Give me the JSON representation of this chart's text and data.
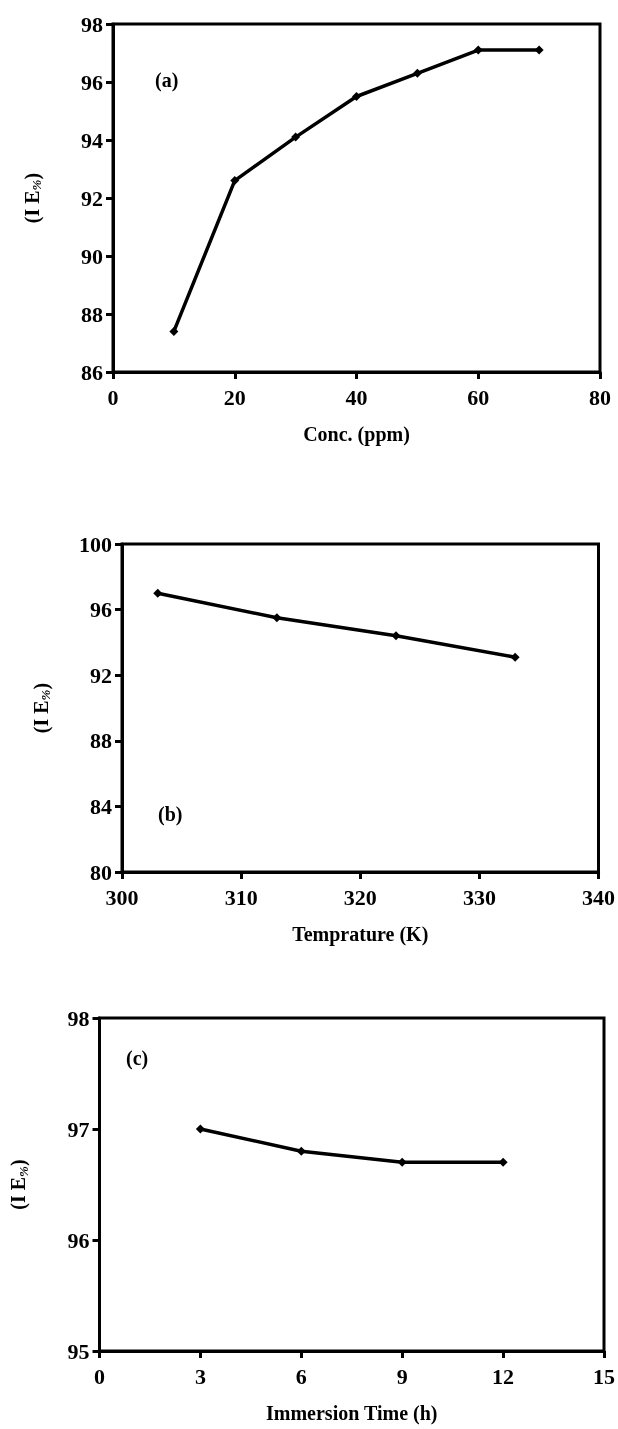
{
  "chart_data": [
    {
      "type": "line",
      "xlabel": "Conc. (ppm)",
      "ylabel": "(I E$_{%}$)",
      "annotations": [
        "(a)"
      ],
      "x": [
        10,
        20,
        30,
        40,
        50,
        60,
        70
      ],
      "series": [
        {
          "color": "#000000",
          "values": [
            87.4,
            92.6,
            94.1,
            95.5,
            96.3,
            97.1,
            97.1
          ]
        }
      ],
      "xlim": [
        0,
        80
      ],
      "xticks": [
        0,
        20,
        40,
        60,
        80
      ],
      "ylim": [
        86,
        98
      ],
      "yticks": [
        86,
        88,
        90,
        92,
        94,
        96,
        98
      ],
      "grid": false,
      "marker": "diamond",
      "line_style": "solid"
    },
    {
      "type": "line",
      "xlabel": "Temprature (K)",
      "ylabel": "(I E$_{%}$)",
      "annotations": [
        "(b)"
      ],
      "x": [
        303,
        313,
        323,
        333
      ],
      "series": [
        {
          "color": "#000000",
          "values": [
            97.0,
            95.5,
            94.4,
            93.1
          ]
        }
      ],
      "xlim": [
        300,
        340
      ],
      "xticks": [
        300,
        310,
        320,
        330,
        340
      ],
      "ylim": [
        80,
        100
      ],
      "yticks": [
        80,
        84,
        88,
        92,
        96,
        100
      ],
      "grid": false,
      "marker": "diamond",
      "line_style": "solid"
    },
    {
      "type": "line",
      "xlabel": "Immersion Time (h)",
      "ylabel": "(I E$_{%}$)",
      "annotations": [
        "(c)"
      ],
      "x": [
        3,
        6,
        9,
        12
      ],
      "series": [
        {
          "color": "#000000",
          "values": [
            97.0,
            96.8,
            96.7,
            96.7
          ]
        }
      ],
      "xlim": [
        0,
        15
      ],
      "xticks": [
        0,
        3,
        6,
        9,
        12,
        15
      ],
      "ylim": [
        95,
        98
      ],
      "yticks": [
        95,
        96,
        97,
        98
      ],
      "grid": false,
      "marker": "diamond",
      "line_style": "solid"
    }
  ]
}
